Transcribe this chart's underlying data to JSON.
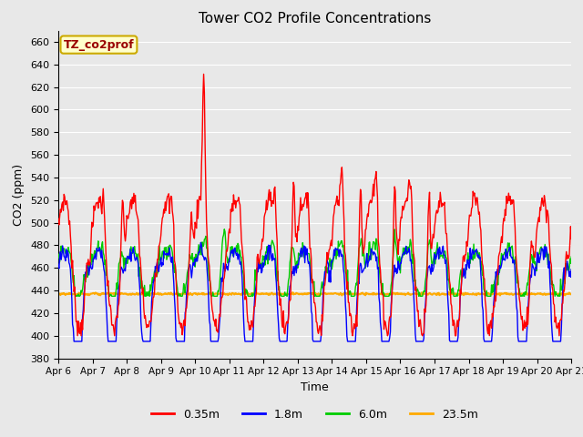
{
  "title": "Tower CO2 Profile Concentrations",
  "xlabel": "Time",
  "ylabel": "CO2 (ppm)",
  "ylim": [
    380,
    670
  ],
  "yticks": [
    380,
    400,
    420,
    440,
    460,
    480,
    500,
    520,
    540,
    560,
    580,
    600,
    620,
    640,
    660
  ],
  "colors": {
    "0.35m": "#ff0000",
    "1.8m": "#0000ff",
    "6.0m": "#00cc00",
    "23.5m": "#ffaa00"
  },
  "legend_labels": [
    "0.35m",
    "1.8m",
    "6.0m",
    "23.5m"
  ],
  "annotation_text": "TZ_co2prof",
  "annotation_bg": "#ffffcc",
  "annotation_border": "#ccaa00",
  "plot_bg": "#e8e8e8",
  "fig_bg": "#e8e8e8",
  "grid_color": "#ffffff",
  "baseline_035": 470,
  "baseline_18": 455,
  "baseline_60": 460,
  "baseline_235": 437
}
